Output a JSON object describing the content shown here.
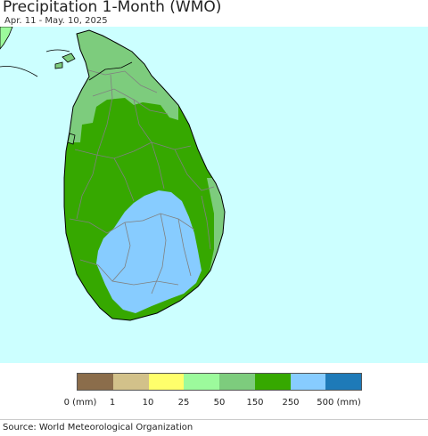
{
  "map": {
    "title": "Precipitation 1-Month (WMO)",
    "date_range": "Apr. 11 - May. 10, 2025",
    "ocean_color": "#ccffff",
    "land_outline_color": "#000000",
    "district_border_color": "#808080"
  },
  "legend": {
    "unit_label": "0 (mm)",
    "classes": [
      {
        "min": 0,
        "max": 1,
        "color": "#8b6d4b"
      },
      {
        "min": 1,
        "max": 10,
        "color": "#d2c18a"
      },
      {
        "min": 10,
        "max": 25,
        "color": "#ffff6b"
      },
      {
        "min": 25,
        "max": 50,
        "color": "#9cfa9c"
      },
      {
        "min": 50,
        "max": 150,
        "color": "#7dcc7d"
      },
      {
        "min": 150,
        "max": 250,
        "color": "#36a800"
      },
      {
        "min": 250,
        "max": 500,
        "color": "#87ccff"
      },
      {
        "min": 500,
        "max": null,
        "color": "#1e7ab8"
      }
    ],
    "tick_labels": [
      "0 (mm)",
      "1",
      "10",
      "25",
      "50",
      "150",
      "250",
      "500 (mm)"
    ]
  },
  "source": "Source: World Meteorological Organization"
}
